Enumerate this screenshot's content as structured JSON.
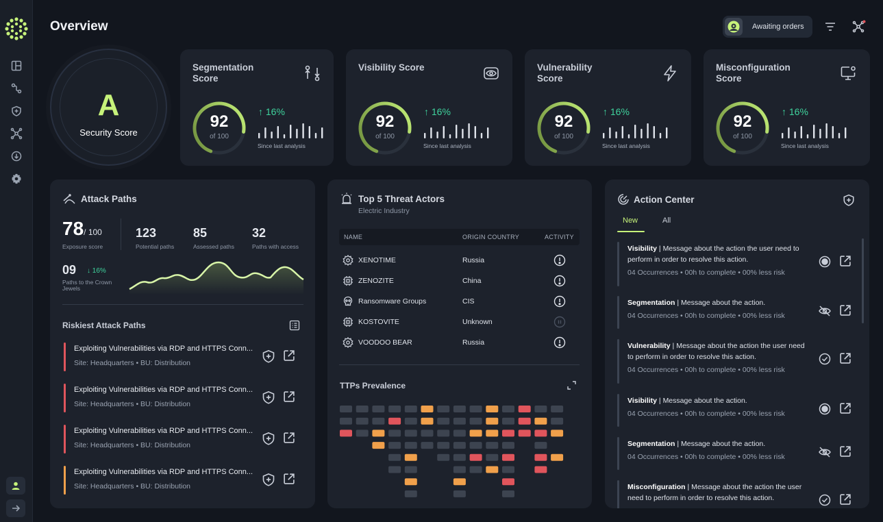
{
  "page": {
    "title": "Overview"
  },
  "header": {
    "status": "Awaiting orders"
  },
  "security": {
    "grade": "A",
    "label": "Security Score"
  },
  "scores": [
    {
      "title": "Segmentation Score",
      "icon": "segmentation-icon",
      "value": "92",
      "of": "of 100",
      "percent": 92,
      "delta": "16%",
      "since": "Since last analysis"
    },
    {
      "title": "Visibility Score",
      "icon": "eye-icon",
      "value": "92",
      "of": "of 100",
      "percent": 92,
      "delta": "16%",
      "since": "Since last analysis"
    },
    {
      "title": "Vulnerability Score",
      "icon": "lightning-icon",
      "value": "92",
      "of": "of 100",
      "percent": 92,
      "delta": "16%",
      "since": "Since last analysis"
    },
    {
      "title": "Misconfiguration Score",
      "icon": "monitor-gear-icon",
      "value": "92",
      "of": "of 100",
      "percent": 92,
      "delta": "16%",
      "since": "Since last analysis"
    }
  ],
  "attack": {
    "title": "Attack Paths",
    "exposure_value": "78",
    "exposure_total": "/ 100",
    "exposure_label": "Exposure score",
    "stats": [
      {
        "value": "123",
        "label": "Potential paths"
      },
      {
        "value": "85",
        "label": "Assessed paths"
      },
      {
        "value": "32",
        "label": "Paths with access"
      }
    ],
    "crown_value": "09",
    "crown_delta": "16%",
    "crown_label": "Paths to the Crown Jewels",
    "riskiest_title": "Riskiest Attack Paths",
    "paths": [
      {
        "title": "Exploiting Vulnerabilities via RDP and HTTPS Conn...",
        "sub": "Site: Headquarters • BU: Distribution",
        "severity": "#e0555c"
      },
      {
        "title": "Exploiting Vulnerabilities via RDP and HTTPS Conn...",
        "sub": "Site: Headquarters • BU: Distribution",
        "severity": "#e0555c"
      },
      {
        "title": "Exploiting Vulnerabilities via RDP and HTTPS Conn...",
        "sub": "Site: Headquarters • BU: Distribution",
        "severity": "#e0555c"
      },
      {
        "title": "Exploiting Vulnerabilities via RDP and HTTPS Conn...",
        "sub": "Site: Headquarters • BU: Distribution",
        "severity": "#f0a04b"
      }
    ]
  },
  "threats": {
    "title": "Top 5 Threat Actors",
    "subtitle": "Electric Industry",
    "columns": [
      "NAME",
      "ORIGIN COUNTRY",
      "ACTIVITY"
    ],
    "actors": [
      {
        "name": "XENOTIME",
        "country": "Russia",
        "icon": "gear-chip-icon",
        "active": true
      },
      {
        "name": "ZENOZITE",
        "country": "China",
        "icon": "chip-icon",
        "active": true
      },
      {
        "name": "Ransomware Groups",
        "country": "CIS",
        "icon": "skull-icon",
        "active": true
      },
      {
        "name": "KOSTOVITE",
        "country": "Unknown",
        "icon": "chip-icon",
        "active": false
      },
      {
        "name": "VOODOO BEAR",
        "country": "Russia",
        "icon": "gear-chip-icon",
        "active": true
      }
    ],
    "ttps_title": "TTPs Prevalence"
  },
  "actions": {
    "title": "Action Center",
    "tabs": [
      "New",
      "All"
    ],
    "items": [
      {
        "category": "Visibility",
        "message": "Message about the action the user need to perform in order to resolve this action.",
        "occurrences": "04 Occurrences",
        "time": "00h to complete",
        "risk": "00% less risk",
        "icon": "record-icon"
      },
      {
        "category": "Segmentation",
        "message": "Message about the action.",
        "occurrences": "04 Occurrences",
        "time": "00h to complete",
        "risk": "00% less risk",
        "icon": "eye-off-icon"
      },
      {
        "category": "Vulnerability",
        "message": "Message about the action the user need to perform in order to resolve this action.",
        "occurrences": "04 Occurrences",
        "time": "00h to complete",
        "risk": "00% less risk",
        "icon": "check-circle-icon"
      },
      {
        "category": "Visibility",
        "message": "Message about the action.",
        "occurrences": "04 Occurrences",
        "time": "00h to complete",
        "risk": "00% less risk",
        "icon": "record-icon"
      },
      {
        "category": "Segmentation",
        "message": "Message about the action.",
        "occurrences": "04 Occurrences",
        "time": "00h to complete",
        "risk": "00% less risk",
        "icon": "eye-off-icon"
      },
      {
        "category": "Misconfiguration",
        "message": "Message about the action the user need to perform in order to resolve this action.",
        "occurrences": "",
        "time": "",
        "risk": "",
        "icon": "check-circle-icon"
      }
    ]
  },
  "colors": {
    "accent": "#c6f27a",
    "green": "#3fd39d",
    "red": "#e0555c",
    "orange": "#f0a04b",
    "gray": "#3d4450"
  }
}
